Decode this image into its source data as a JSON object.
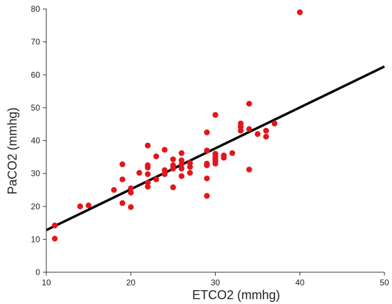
{
  "chart_data": {
    "type": "scatter",
    "title": "",
    "xlabel": "ETCO2 (mmhg)",
    "ylabel": "PaCO2 (mmhg)",
    "xlim": [
      10,
      50
    ],
    "ylim": [
      0,
      80
    ],
    "x_ticks": [
      10,
      20,
      30,
      40,
      50
    ],
    "y_ticks": [
      0,
      10,
      20,
      30,
      40,
      50,
      60,
      70,
      80
    ],
    "grid": false,
    "legend": "none",
    "colors": {
      "points": "#e3161b",
      "fit_line": "#000000",
      "axis": "#333333"
    },
    "series": [
      {
        "points": [
          [
            11,
            14.2
          ],
          [
            11,
            10.2
          ],
          [
            14,
            20
          ],
          [
            15,
            20.3
          ],
          [
            18,
            25
          ],
          [
            19,
            32.8
          ],
          [
            19,
            28.2
          ],
          [
            19,
            21
          ],
          [
            20,
            25.5
          ],
          [
            20,
            24.2
          ],
          [
            20,
            19.8
          ],
          [
            21,
            30.2
          ],
          [
            22,
            38.5
          ],
          [
            22,
            32.5
          ],
          [
            22,
            31.8
          ],
          [
            22,
            29.8
          ],
          [
            22,
            27.2
          ],
          [
            22,
            26
          ],
          [
            23,
            35.2
          ],
          [
            23,
            28.2
          ],
          [
            24,
            37.2
          ],
          [
            24,
            31
          ],
          [
            24,
            29.8
          ],
          [
            25,
            34.3
          ],
          [
            25,
            32.5
          ],
          [
            25,
            31.5
          ],
          [
            25,
            25.8
          ],
          [
            26,
            36.2
          ],
          [
            26,
            34
          ],
          [
            26,
            32.8
          ],
          [
            26,
            31.5
          ],
          [
            26,
            29.2
          ],
          [
            27,
            33.2
          ],
          [
            27,
            32
          ],
          [
            27,
            30.2
          ],
          [
            29,
            42.5
          ],
          [
            29,
            37
          ],
          [
            29,
            33
          ],
          [
            29,
            32.5
          ],
          [
            29,
            28.5
          ],
          [
            29,
            23.2
          ],
          [
            30,
            47.8
          ],
          [
            30,
            36
          ],
          [
            30,
            35.2
          ],
          [
            30,
            34.5
          ],
          [
            30,
            33.8
          ],
          [
            30,
            33
          ],
          [
            31,
            35.5
          ],
          [
            31,
            34.8
          ],
          [
            32,
            36.2
          ],
          [
            33,
            45.2
          ],
          [
            33,
            44.2
          ],
          [
            33,
            43
          ],
          [
            34,
            51.2
          ],
          [
            34,
            43.5
          ],
          [
            34,
            31.2
          ],
          [
            35,
            42
          ],
          [
            36,
            43
          ],
          [
            36,
            41.2
          ],
          [
            37,
            45.2
          ],
          [
            40,
            79
          ]
        ]
      }
    ],
    "fit_line": {
      "x": [
        10,
        50
      ],
      "y": [
        12.8,
        62.5
      ]
    }
  }
}
